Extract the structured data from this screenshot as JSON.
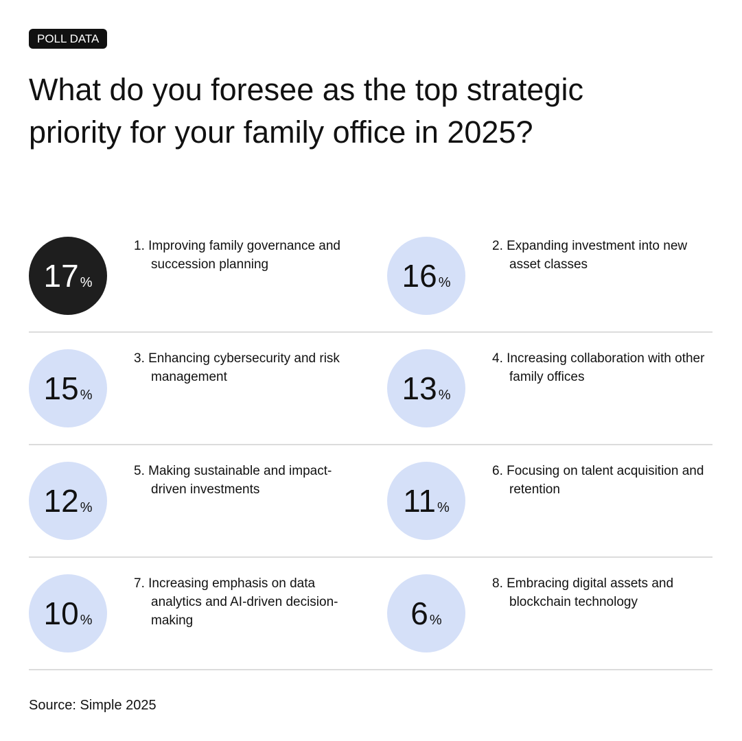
{
  "badge": "POLL DATA",
  "title": "What do you foresee as the top strategic priority for your family office in 2025?",
  "items": [
    {
      "value": 17,
      "unit": "%",
      "label": "1. Improving family governance and succession planning",
      "color": "#1e1e1e",
      "text_color": "#ffffff"
    },
    {
      "value": 16,
      "unit": "%",
      "label": "2. Expanding investment into new asset classes",
      "color": "#d5e0f8",
      "text_color": "#111111"
    },
    {
      "value": 15,
      "unit": "%",
      "label": "3. Enhancing cybersecurity and risk management",
      "color": "#d5e0f8",
      "text_color": "#111111"
    },
    {
      "value": 13,
      "unit": "%",
      "label": "4. Increasing collaboration with other family offices",
      "color": "#d5e0f8",
      "text_color": "#111111"
    },
    {
      "value": 12,
      "unit": "%",
      "label": "5. Making sustainable and impact-driven investments",
      "color": "#d5e0f8",
      "text_color": "#111111"
    },
    {
      "value": 11,
      "unit": "%",
      "label": "6. Focusing on talent acquisition and retention",
      "color": "#d5e0f8",
      "text_color": "#111111"
    },
    {
      "value": 10,
      "unit": "%",
      "label": "7. Increasing emphasis on data analytics and AI-driven decision-making",
      "color": "#d5e0f8",
      "text_color": "#111111"
    },
    {
      "value": 6,
      "unit": "%",
      "label": "8. Embracing digital assets and blockchain technology",
      "color": "#d5e0f8",
      "text_color": "#111111"
    }
  ],
  "source": "Source: Simple 2025"
}
